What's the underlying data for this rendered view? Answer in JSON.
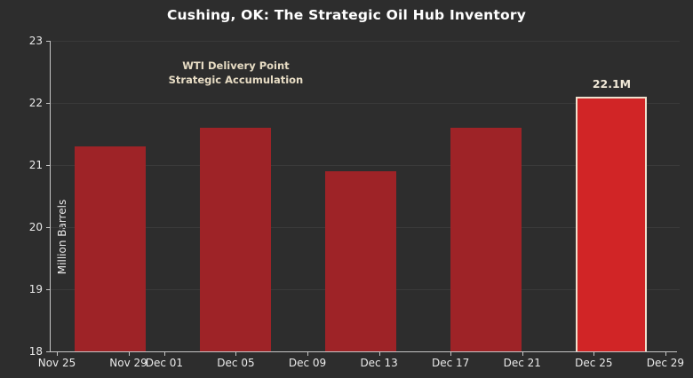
{
  "chart_data": {
    "type": "bar",
    "title": "Cushing, OK: The Strategic Oil Hub Inventory",
    "xlabel": "",
    "ylabel": "Million Barrels",
    "ylim": [
      18,
      23
    ],
    "grid": "faint horizontal",
    "annotation": {
      "line1": "WTI Delivery Point",
      "line2": "Strategic Accumulation",
      "anchor_day": 10
    },
    "y_ticks": [
      18,
      19,
      20,
      21,
      22,
      23
    ],
    "x_ticks": [
      {
        "label": "Nov 25",
        "day": 0
      },
      {
        "label": "Nov 29",
        "day": 4
      },
      {
        "label": "Dec 01",
        "day": 6
      },
      {
        "label": "Dec 05",
        "day": 10
      },
      {
        "label": "Dec 09",
        "day": 14
      },
      {
        "label": "Dec 13",
        "day": 18
      },
      {
        "label": "Dec 17",
        "day": 22
      },
      {
        "label": "Dec 21",
        "day": 26
      },
      {
        "label": "Dec 25",
        "day": 30
      },
      {
        "label": "Dec 29",
        "day": 34
      }
    ],
    "bars": [
      {
        "date": "Nov 28",
        "day": 3,
        "value": 21.3,
        "highlight": false,
        "label": ""
      },
      {
        "date": "Dec 05",
        "day": 10,
        "value": 21.6,
        "highlight": false,
        "label": ""
      },
      {
        "date": "Dec 12",
        "day": 17,
        "value": 20.9,
        "highlight": false,
        "label": ""
      },
      {
        "date": "Dec 19",
        "day": 24,
        "value": 21.6,
        "highlight": false,
        "label": ""
      },
      {
        "date": "Dec 26",
        "day": 31,
        "value": 22.1,
        "highlight": true,
        "label": "22.1M"
      }
    ],
    "colors": {
      "background": "#2d2d2d",
      "bar": "#9e2327",
      "bar_highlight": "#d12526",
      "bar_highlight_edge": "#efe0cd",
      "title_text": "#ffffff",
      "tick_text": "#eaeaea",
      "annotation_text": "#e7dcc4",
      "value_label_text": "#f1e9d8",
      "spine": "#c6c6c6",
      "gridline": "#3a3a3a"
    }
  }
}
